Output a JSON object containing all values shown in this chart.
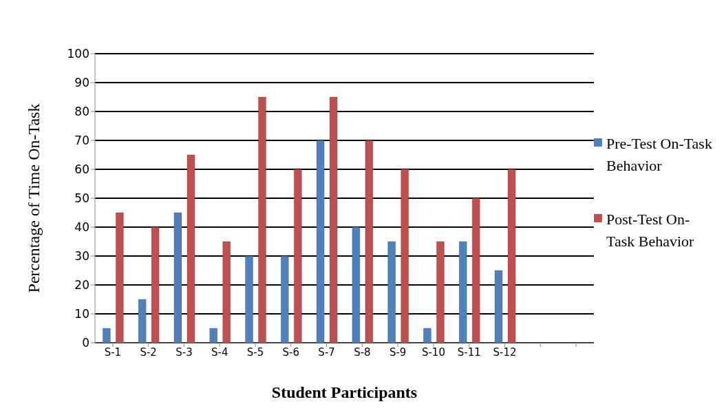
{
  "chart_data": {
    "type": "bar",
    "xlabel": "Student Participants",
    "ylabel": "Percentage of Time On-Task",
    "categories": [
      "S-1",
      "S-2",
      "S-3",
      "S-4",
      "S-5",
      "S-6",
      "S-7",
      "S-8",
      "S-9",
      "S-10",
      "S-11",
      "S-12",
      null,
      null
    ],
    "series": [
      {
        "name": "Pre-Test On-Task Behavior",
        "color": "#4f81bd",
        "values": [
          5,
          15,
          45,
          5,
          30,
          30,
          70,
          40,
          35,
          5,
          35,
          25,
          null,
          null
        ]
      },
      {
        "name": "Post-Test On-Task Behavior",
        "color": "#c0504d",
        "values": [
          45,
          40,
          65,
          35,
          85,
          60,
          85,
          70,
          60,
          35,
          50,
          60,
          null,
          null
        ]
      }
    ],
    "ylim": [
      0,
      100
    ],
    "yticks": [
      0,
      10,
      20,
      30,
      40,
      50,
      60,
      70,
      80,
      90,
      100
    ],
    "grid": "y",
    "legend": "right"
  }
}
